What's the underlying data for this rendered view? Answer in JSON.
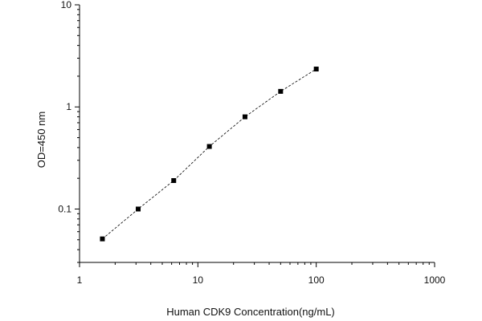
{
  "chart_data": {
    "type": "scatter",
    "title": "",
    "xlabel": "Human CDK9 Concentration(ng/mL)",
    "ylabel": "OD=450 nm",
    "xscale": "log",
    "yscale": "log",
    "xlim": [
      1,
      1000
    ],
    "ylim": [
      0.03,
      10
    ],
    "xticks": [
      {
        "value": 1,
        "label": "1"
      },
      {
        "value": 10,
        "label": "10"
      },
      {
        "value": 100,
        "label": "100"
      },
      {
        "value": 1000,
        "label": "1000"
      }
    ],
    "yticks": [
      {
        "value": 0.1,
        "label": "0.1"
      },
      {
        "value": 1,
        "label": "1"
      },
      {
        "value": 10,
        "label": "10"
      }
    ],
    "grid": false,
    "legend": "none",
    "series": [
      {
        "x": [
          1.56,
          3.13,
          6.25,
          12.5,
          25,
          50,
          100
        ],
        "y": [
          0.051,
          0.1,
          0.19,
          0.41,
          0.8,
          1.42,
          2.35
        ],
        "marker": "square",
        "line": "dashed",
        "color": "#000000"
      }
    ]
  }
}
